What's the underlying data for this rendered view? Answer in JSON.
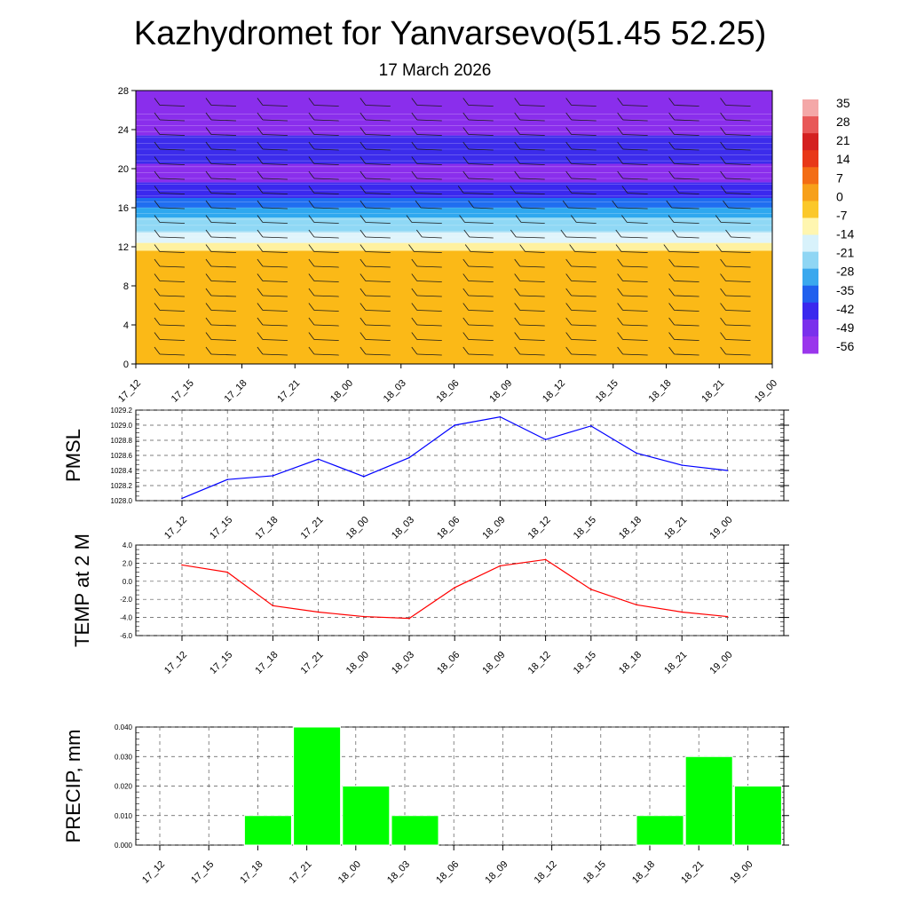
{
  "page": {
    "title": "Kazhydromet for Yanvarsevo(51.45 52.25)",
    "subtitle": "17 March 2026"
  },
  "chart_data": [
    {
      "type": "heatmap",
      "name": "cross-section",
      "x": [
        "17_12",
        "17_15",
        "17_18",
        "17_21",
        "18_00",
        "18_03",
        "18_06",
        "18_09",
        "18_12",
        "18_15",
        "18_18",
        "18_21",
        "19_00"
      ],
      "y_ticks": [
        0,
        4,
        8,
        12,
        16,
        20,
        24,
        28
      ],
      "ylim": [
        0,
        28
      ],
      "color_bands": [
        {
          "from": 0,
          "to": 11.6,
          "color": "#fbb917"
        },
        {
          "from": 11.6,
          "to": 12.4,
          "color": "#fff1a0"
        },
        {
          "from": 12.4,
          "to": 13.5,
          "color": "#e0f4fb"
        },
        {
          "from": 13.5,
          "to": 15.0,
          "color": "#8fd8f5"
        },
        {
          "from": 15.0,
          "to": 16.0,
          "color": "#2fa8ef"
        },
        {
          "from": 16.0,
          "to": 17.0,
          "color": "#1f6ef0"
        },
        {
          "from": 17.0,
          "to": 18.6,
          "color": "#3a28ee"
        },
        {
          "from": 18.6,
          "to": 20.5,
          "color": "#8a2eec"
        },
        {
          "from": 20.5,
          "to": 23.4,
          "color": "#3c2ceb"
        },
        {
          "from": 23.4,
          "to": 28,
          "color": "#8a2eec"
        }
      ],
      "colorbar": {
        "labels": [
          "35",
          "28",
          "21",
          "14",
          "7",
          "0",
          "-7",
          "-14",
          "-21",
          "-28",
          "-35",
          "-42",
          "-49",
          "-56"
        ],
        "colors": [
          "#f4a8a8",
          "#e85858",
          "#d42020",
          "#e83818",
          "#f36d15",
          "#f7a01a",
          "#fbc82a",
          "#fff6b0",
          "#d8f2fb",
          "#8fd6f4",
          "#3aa8ee",
          "#2060ee",
          "#3a28ee",
          "#7a30ec",
          "#9a36ec"
        ]
      }
    },
    {
      "type": "line",
      "ylabel": "PMSL",
      "categories": [
        "17_12",
        "17_15",
        "17_18",
        "17_21",
        "18_00",
        "18_03",
        "18_06",
        "18_09",
        "18_12",
        "18_15",
        "18_18",
        "18_21",
        "19_00"
      ],
      "values": [
        1028.03,
        1028.28,
        1028.33,
        1028.55,
        1028.32,
        1028.57,
        1029.0,
        1029.11,
        1028.81,
        1028.99,
        1028.63,
        1028.47,
        1028.4
      ],
      "ylim": [
        1028.0,
        1029.2
      ],
      "yticks": [
        "1028.0",
        "1028.2",
        "1028.4",
        "1028.6",
        "1028.8",
        "1029.0",
        "1029.2"
      ],
      "color": "#0000ff"
    },
    {
      "type": "line",
      "ylabel": "TEMP at 2 M",
      "categories": [
        "17_12",
        "17_15",
        "17_18",
        "17_21",
        "18_00",
        "18_03",
        "18_06",
        "18_09",
        "18_12",
        "18_15",
        "18_18",
        "18_21",
        "19_00"
      ],
      "values": [
        1.8,
        1.0,
        -2.7,
        -3.4,
        -3.9,
        -4.1,
        -0.7,
        1.7,
        2.4,
        -0.9,
        -2.6,
        -3.4,
        -3.9
      ],
      "ylim": [
        -6.0,
        4.0
      ],
      "yticks": [
        "-6.0",
        "-4.0",
        "-2.0",
        "0.0",
        "2.0",
        "4.0"
      ],
      "color": "#ff0000"
    },
    {
      "type": "bar",
      "ylabel": "PRECIP, mm",
      "categories": [
        "17_12",
        "17_15",
        "17_18",
        "17_21",
        "18_00",
        "18_03",
        "18_06",
        "18_09",
        "18_12",
        "18_15",
        "18_18",
        "18_21",
        "19_00"
      ],
      "values": [
        0,
        0,
        0.01,
        0.04,
        0.02,
        0.01,
        0,
        0,
        0,
        0,
        0.01,
        0.03,
        0.02
      ],
      "ylim": [
        0,
        0.04
      ],
      "yticks": [
        "0.000",
        "0.010",
        "0.020",
        "0.030",
        "0.040"
      ],
      "color": "#00ff00"
    }
  ]
}
